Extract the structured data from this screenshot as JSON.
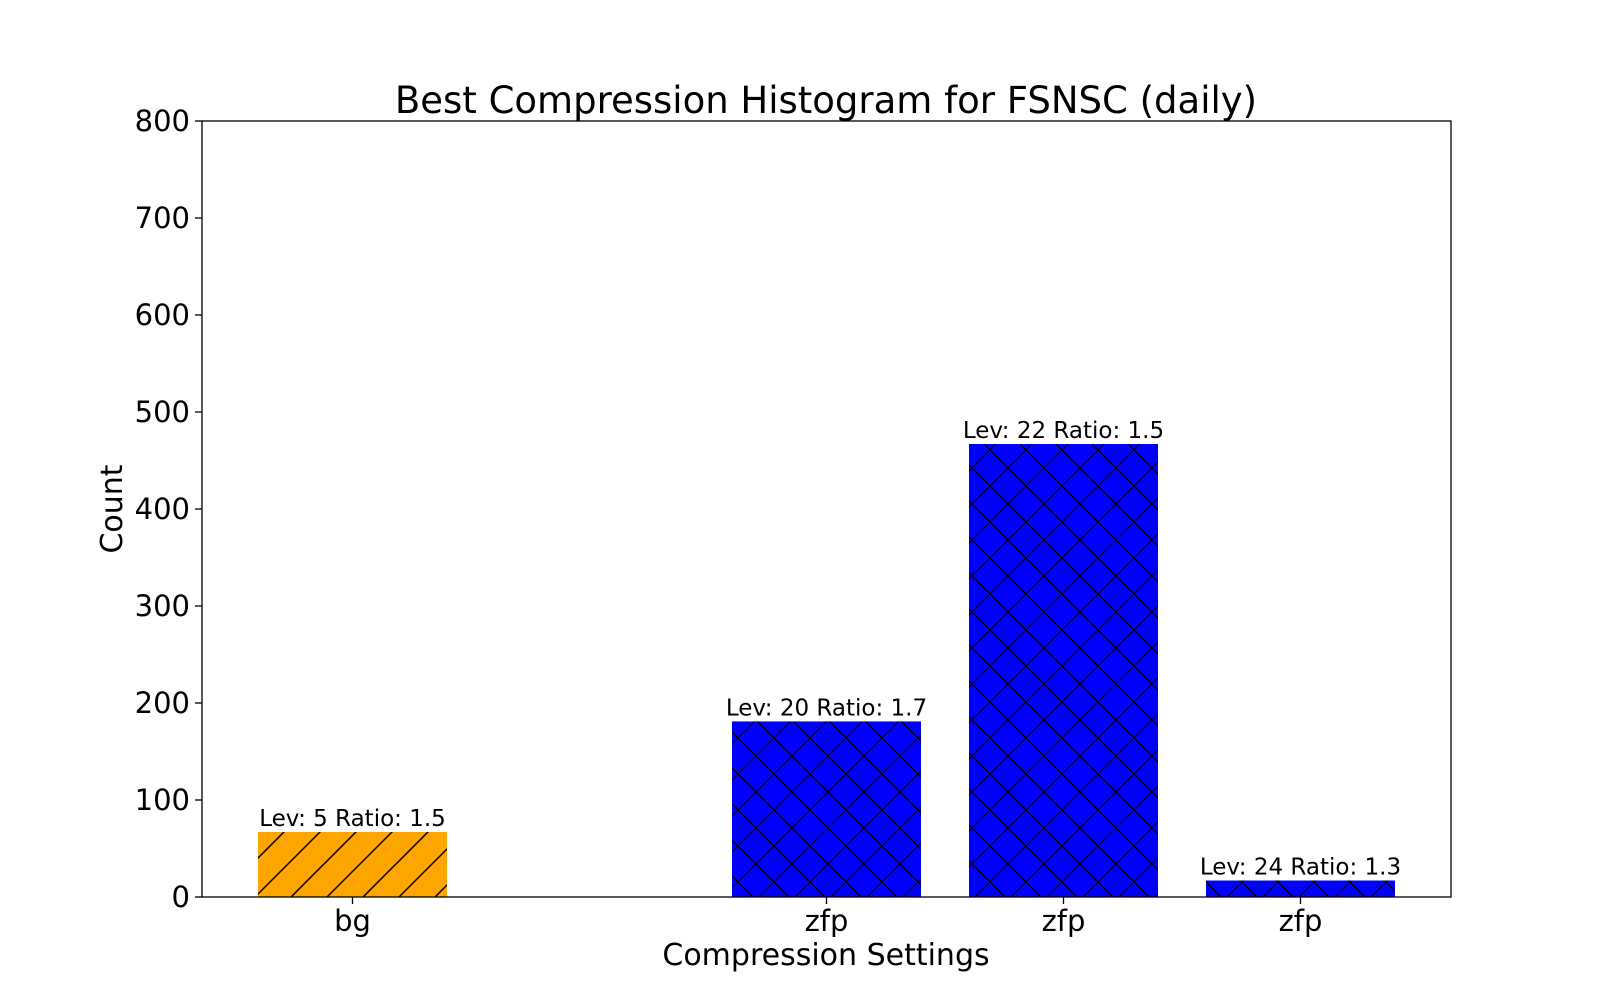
{
  "chart_data": {
    "type": "bar",
    "title": "Best Compression Histogram for FSNSC (daily)",
    "xlabel": "Compression Settings",
    "ylabel": "Count",
    "ylim": [
      0,
      800
    ],
    "yticks": [
      0,
      100,
      200,
      300,
      400,
      500,
      600,
      700,
      800
    ],
    "grid": false,
    "slots": 5,
    "bars": [
      {
        "slot": 0,
        "category": "bg",
        "value": 67,
        "label": "Lev: 5 Ratio: 1.5",
        "color": "#FFA500",
        "hatch": "diagonal"
      },
      {
        "slot": 2,
        "category": "zfp",
        "value": 181,
        "label": "Lev: 20 Ratio: 1.7",
        "color": "#0000FF",
        "hatch": "cross"
      },
      {
        "slot": 3,
        "category": "zfp",
        "value": 467,
        "label": "Lev: 22 Ratio: 1.5",
        "color": "#0000FF",
        "hatch": "cross"
      },
      {
        "slot": 4,
        "category": "zfp",
        "value": 17,
        "label": "Lev: 24 Ratio: 1.3",
        "color": "#0000FF",
        "hatch": "cross"
      }
    ]
  }
}
